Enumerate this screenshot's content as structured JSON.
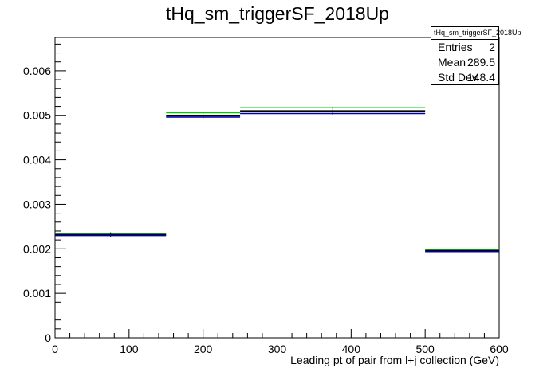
{
  "chart_data": {
    "type": "bar",
    "title": "tHq_sm_triggerSF_2018Up",
    "xlabel": "Leading pt of pair from l+j collection (GeV)",
    "ylabel": "",
    "xlim": [
      0,
      600
    ],
    "ylim": [
      0,
      0.00675
    ],
    "x_ticks": [
      "0",
      "100",
      "200",
      "300",
      "400",
      "500",
      "600"
    ],
    "y_ticks": [
      "0",
      "0.001",
      "0.002",
      "0.003",
      "0.004",
      "0.005",
      "0.006"
    ],
    "bin_edges": [
      0,
      150,
      250,
      500,
      600
    ],
    "series": [
      {
        "values": [
          0.00235,
          0.00506,
          0.00517,
          0.00198
        ],
        "color": "#00cc00"
      },
      {
        "values": [
          0.00232,
          0.005,
          0.0051,
          0.00196
        ],
        "color": "#000000"
      },
      {
        "values": [
          0.0023,
          0.00496,
          0.00504,
          0.00194
        ],
        "color": "#0000aa"
      }
    ],
    "grid": false,
    "legend": "none"
  },
  "stats": {
    "name": "tHq_sm_triggerSF_2018Up",
    "rows": [
      {
        "label": "Entries",
        "value": "2"
      },
      {
        "label": "Mean",
        "value": "289.5"
      },
      {
        "label": "Std Dev",
        "value": "148.4"
      }
    ]
  }
}
